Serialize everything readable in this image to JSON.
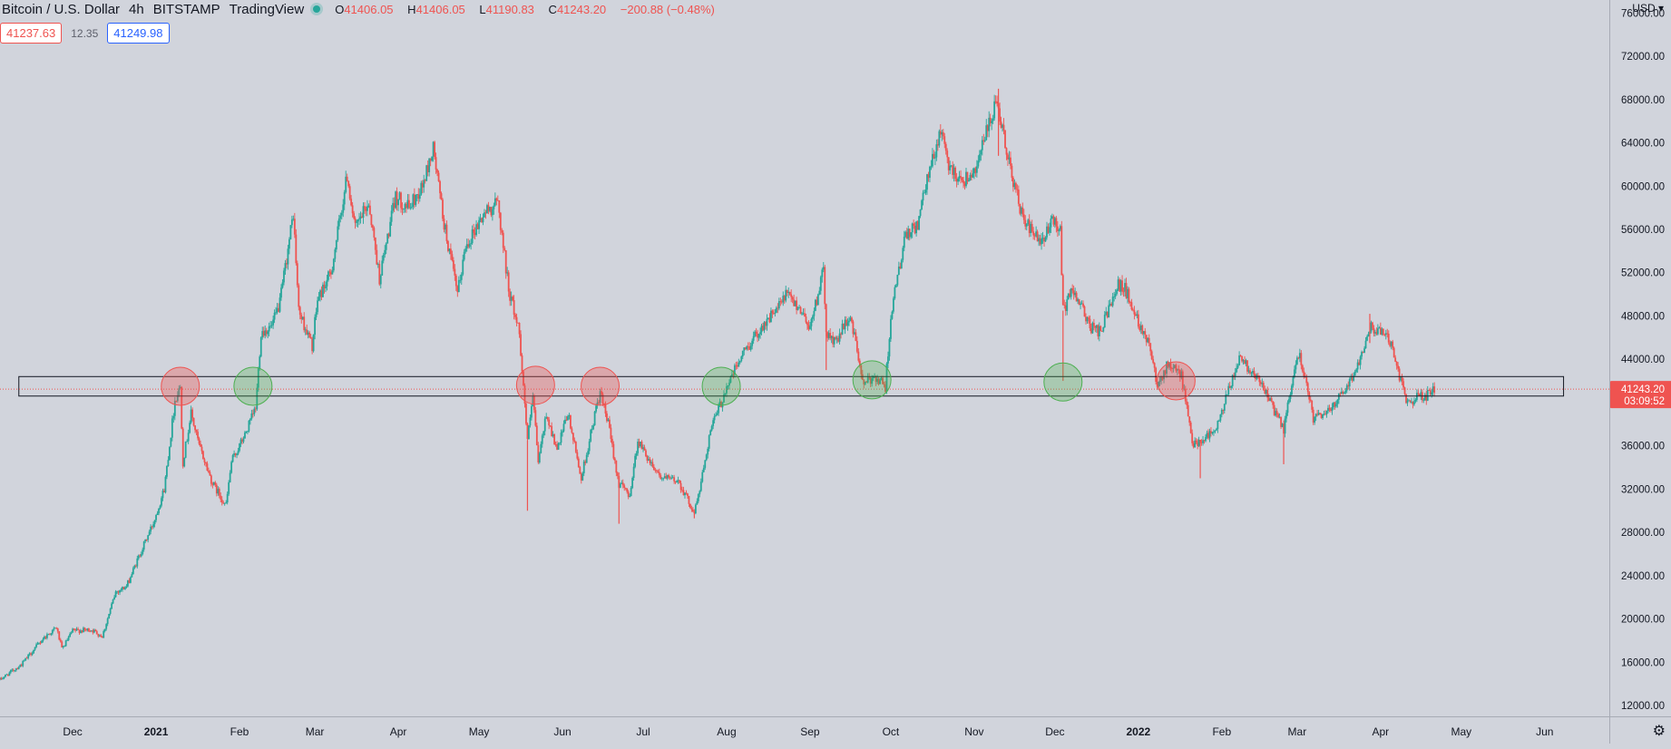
{
  "legend": {
    "symbol": "Bitcoin / U.S. Dollar",
    "interval": "4h",
    "exchange": "BITSTAMP",
    "source": "TradingView",
    "open_key": "O",
    "open": "41406.05",
    "high_key": "H",
    "high": "41406.05",
    "low_key": "L",
    "low": "41190.83",
    "close_key": "C",
    "close": "41243.20",
    "change": "−200.88 (−0.48%)"
  },
  "trade": {
    "sell": "41237.63",
    "spread": "12.35",
    "buy": "41249.98"
  },
  "price_scale": {
    "currency": "USD",
    "current_price": "41243.20",
    "countdown": "03:09:52"
  },
  "colors": {
    "up": "#26a69a",
    "down": "#ef5350",
    "bg": "#d1d4dc",
    "zone_border": "#131722",
    "circle_red": "#ef5350",
    "circle_green": "#4caf50"
  },
  "icons": {
    "currency_dropdown": "chevron-down-icon",
    "settings": "gear-icon"
  },
  "chart_data": {
    "type": "candlestick",
    "y_ticks": [
      12000,
      16000,
      20000,
      24000,
      28000,
      32000,
      36000,
      40000,
      44000,
      48000,
      52000,
      56000,
      60000,
      64000,
      68000,
      72000,
      76000
    ],
    "y_tick_labels": [
      "12000.00",
      "16000.00",
      "20000.00",
      "24000.00",
      "28000.00",
      "32000.00",
      "36000.00",
      "40000.00",
      "44000.00",
      "48000.00",
      "52000.00",
      "56000.00",
      "60000.00",
      "64000.00",
      "68000.00",
      "72000.00",
      "76000.00"
    ],
    "ylim": [
      11000,
      77200
    ],
    "x_ticks": [
      {
        "label": "Dec",
        "date": "2020-12-01"
      },
      {
        "label": "2021",
        "date": "2021-01-01"
      },
      {
        "label": "Feb",
        "date": "2021-02-01"
      },
      {
        "label": "Mar",
        "date": "2021-03-01"
      },
      {
        "label": "Apr",
        "date": "2021-04-01"
      },
      {
        "label": "May",
        "date": "2021-05-01"
      },
      {
        "label": "Jun",
        "date": "2021-06-01"
      },
      {
        "label": "Jul",
        "date": "2021-07-01"
      },
      {
        "label": "Aug",
        "date": "2021-08-01"
      },
      {
        "label": "Sep",
        "date": "2021-09-01"
      },
      {
        "label": "Oct",
        "date": "2021-10-01"
      },
      {
        "label": "Nov",
        "date": "2021-11-01"
      },
      {
        "label": "Dec",
        "date": "2021-12-01"
      },
      {
        "label": "2022",
        "date": "2022-01-01"
      },
      {
        "label": "Feb",
        "date": "2022-02-01"
      },
      {
        "label": "Mar",
        "date": "2022-03-01"
      },
      {
        "label": "Apr",
        "date": "2022-04-01"
      },
      {
        "label": "May",
        "date": "2022-05-01"
      },
      {
        "label": "Jun",
        "date": "2022-06-01"
      }
    ],
    "x_range": [
      "2020-11-04",
      "2022-06-25"
    ],
    "close_path": [
      [
        "2020-11-04",
        14400
      ],
      [
        "2020-11-12",
        15800
      ],
      [
        "2020-11-20",
        18200
      ],
      [
        "2020-11-25",
        19200
      ],
      [
        "2020-11-27",
        17200
      ],
      [
        "2020-12-01",
        18900
      ],
      [
        "2020-12-08",
        19000
      ],
      [
        "2020-12-12",
        18400
      ],
      [
        "2020-12-17",
        22500
      ],
      [
        "2020-12-21",
        23000
      ],
      [
        "2020-12-26",
        26000
      ],
      [
        "2020-12-31",
        28900
      ],
      [
        "2021-01-04",
        32000
      ],
      [
        "2021-01-08",
        40200
      ],
      [
        "2021-01-10",
        41500
      ],
      [
        "2021-01-11",
        34500
      ],
      [
        "2021-01-14",
        39000
      ],
      [
        "2021-01-17",
        36000
      ],
      [
        "2021-01-22",
        32500
      ],
      [
        "2021-01-27",
        30500
      ],
      [
        "2021-01-29",
        34500
      ],
      [
        "2021-02-03",
        37000
      ],
      [
        "2021-02-07",
        39500
      ],
      [
        "2021-02-09",
        46500
      ],
      [
        "2021-02-13",
        47000
      ],
      [
        "2021-02-16",
        49200
      ],
      [
        "2021-02-21",
        57500
      ],
      [
        "2021-02-23",
        48500
      ],
      [
        "2021-02-28",
        45200
      ],
      [
        "2021-03-02",
        49500
      ],
      [
        "2021-03-07",
        52000
      ],
      [
        "2021-03-13",
        61000
      ],
      [
        "2021-03-16",
        56000
      ],
      [
        "2021-03-21",
        58500
      ],
      [
        "2021-03-25",
        51500
      ],
      [
        "2021-03-31",
        59000
      ],
      [
        "2021-04-05",
        58000
      ],
      [
        "2021-04-10",
        60000
      ],
      [
        "2021-04-14",
        63500
      ],
      [
        "2021-04-18",
        56500
      ],
      [
        "2021-04-23",
        50000
      ],
      [
        "2021-04-26",
        54500
      ],
      [
        "2021-05-03",
        57500
      ],
      [
        "2021-05-08",
        58500
      ],
      [
        "2021-05-12",
        50500
      ],
      [
        "2021-05-16",
        46500
      ],
      [
        "2021-05-19",
        36500
      ],
      [
        "2021-05-21",
        40500
      ],
      [
        "2021-05-23",
        34500
      ],
      [
        "2021-05-26",
        39000
      ],
      [
        "2021-05-30",
        35500
      ],
      [
        "2021-06-03",
        39000
      ],
      [
        "2021-06-08",
        33000
      ],
      [
        "2021-06-14",
        40000
      ],
      [
        "2021-06-15",
        40800
      ],
      [
        "2021-06-18",
        38000
      ],
      [
        "2021-06-22",
        32500
      ],
      [
        "2021-06-26",
        31500
      ],
      [
        "2021-06-29",
        36500
      ],
      [
        "2021-07-03",
        34800
      ],
      [
        "2021-07-08",
        33000
      ],
      [
        "2021-07-14",
        32800
      ],
      [
        "2021-07-20",
        29800
      ],
      [
        "2021-07-22",
        32000
      ],
      [
        "2021-07-26",
        37500
      ],
      [
        "2021-07-30",
        40000
      ],
      [
        "2021-08-01",
        41500
      ],
      [
        "2021-08-07",
        44500
      ],
      [
        "2021-08-14",
        47000
      ],
      [
        "2021-08-21",
        49000
      ],
      [
        "2021-08-23",
        50000
      ],
      [
        "2021-08-28",
        48800
      ],
      [
        "2021-09-01",
        47000
      ],
      [
        "2021-09-06",
        52200
      ],
      [
        "2021-09-07",
        46500
      ],
      [
        "2021-09-10",
        45500
      ],
      [
        "2021-09-16",
        48000
      ],
      [
        "2021-09-21",
        41500
      ],
      [
        "2021-09-25",
        42500
      ],
      [
        "2021-09-29",
        41500
      ],
      [
        "2021-10-01",
        48000
      ],
      [
        "2021-10-06",
        55000
      ],
      [
        "2021-10-11",
        56500
      ],
      [
        "2021-10-15",
        61000
      ],
      [
        "2021-10-20",
        65500
      ],
      [
        "2021-10-22",
        62000
      ],
      [
        "2021-10-28",
        60500
      ],
      [
        "2021-11-01",
        61500
      ],
      [
        "2021-11-09",
        67500
      ],
      [
        "2021-11-12",
        64500
      ],
      [
        "2021-11-16",
        60000
      ],
      [
        "2021-11-19",
        57000
      ],
      [
        "2021-11-26",
        54500
      ],
      [
        "2021-11-30",
        57000
      ],
      [
        "2021-12-03",
        56000
      ],
      [
        "2021-12-04",
        48500
      ],
      [
        "2021-12-08",
        50500
      ],
      [
        "2021-12-14",
        47000
      ],
      [
        "2021-12-18",
        46500
      ],
      [
        "2021-12-24",
        51000
      ],
      [
        "2021-12-27",
        50500
      ],
      [
        "2022-01-01",
        47500
      ],
      [
        "2022-01-05",
        45500
      ],
      [
        "2022-01-08",
        41800
      ],
      [
        "2022-01-12",
        43500
      ],
      [
        "2022-01-17",
        42500
      ],
      [
        "2022-01-21",
        36200
      ],
      [
        "2022-01-24",
        36500
      ],
      [
        "2022-01-30",
        37500
      ],
      [
        "2022-02-04",
        41500
      ],
      [
        "2022-02-08",
        44500
      ],
      [
        "2022-02-10",
        43500
      ],
      [
        "2022-02-14",
        42500
      ],
      [
        "2022-02-19",
        40000
      ],
      [
        "2022-02-24",
        37500
      ],
      [
        "2022-02-28",
        43000
      ],
      [
        "2022-03-02",
        44500
      ],
      [
        "2022-03-07",
        38500
      ],
      [
        "2022-03-12",
        39000
      ],
      [
        "2022-03-17",
        40800
      ],
      [
        "2022-03-22",
        42500
      ],
      [
        "2022-03-28",
        47000
      ],
      [
        "2022-04-02",
        46500
      ],
      [
        "2022-04-05",
        45500
      ],
      [
        "2022-04-08",
        42500
      ],
      [
        "2022-04-11",
        39800
      ],
      [
        "2022-04-14",
        40500
      ],
      [
        "2022-04-18",
        40600
      ],
      [
        "2022-04-21",
        41243
      ]
    ],
    "spikes": [
      {
        "date": "2021-05-19",
        "low": 30000
      },
      {
        "date": "2021-06-22",
        "low": 28800
      },
      {
        "date": "2021-07-20",
        "low": 29300
      },
      {
        "date": "2021-09-07",
        "low": 43000
      },
      {
        "date": "2021-11-10",
        "low": 62800,
        "high": 69000
      },
      {
        "date": "2021-12-04",
        "low": 42000
      },
      {
        "date": "2022-01-24",
        "low": 33000
      },
      {
        "date": "2022-02-24",
        "low": 34300
      },
      {
        "date": "2022-03-28",
        "low": 45500,
        "high": 48200
      }
    ],
    "zone": {
      "y_low": 40600,
      "y_high": 42400,
      "x_start": "2020-11-11",
      "x_end": "2022-06-08"
    },
    "circles": [
      {
        "date": "2021-01-10",
        "price": 41500,
        "color": "red"
      },
      {
        "date": "2021-02-06",
        "price": 41500,
        "color": "green"
      },
      {
        "date": "2021-05-22",
        "price": 41600,
        "color": "red"
      },
      {
        "date": "2021-06-15",
        "price": 41500,
        "color": "red"
      },
      {
        "date": "2021-07-30",
        "price": 41500,
        "color": "green"
      },
      {
        "date": "2021-09-24",
        "price": 42100,
        "color": "green"
      },
      {
        "date": "2021-12-04",
        "price": 41900,
        "color": "green"
      },
      {
        "date": "2022-01-15",
        "price": 42000,
        "color": "red"
      }
    ],
    "current_price": 41243.2
  }
}
